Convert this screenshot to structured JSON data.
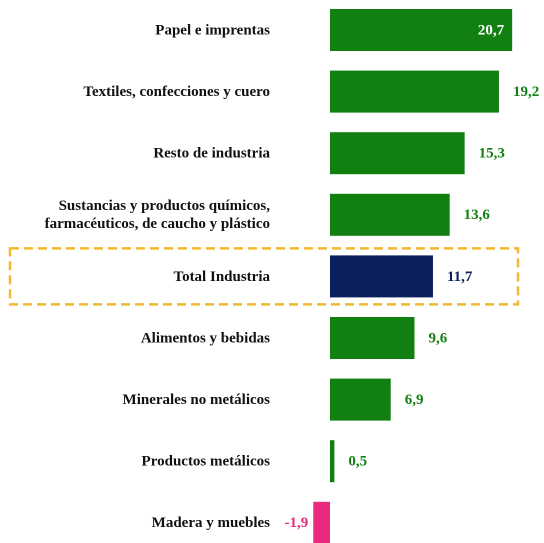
{
  "chart_data": {
    "type": "bar",
    "orientation": "horizontal",
    "categories": [
      "Papel e imprentas",
      "Textiles, confecciones y cuero",
      "Resto de industria",
      "Sustancias y productos químicos,\nfarmacéuticos, de caucho y plástico",
      "Total Industria",
      "Alimentos y bebidas",
      "Minerales no metálicos",
      "Productos metálicos",
      "Madera y muebles"
    ],
    "values": [
      20.7,
      19.2,
      15.3,
      13.6,
      11.7,
      9.6,
      6.9,
      0.5,
      -1.9
    ],
    "value_labels": [
      "20,7",
      "19,2",
      "15,3",
      "13,6",
      "11,7",
      "9,6",
      "6,9",
      "0,5",
      "-1,9"
    ],
    "colors": [
      "#118011",
      "#118011",
      "#118011",
      "#118011",
      "#0b1f5e",
      "#118011",
      "#118011",
      "#118011",
      "#ea2a7d"
    ],
    "highlight": "Total Industria",
    "highlight_color": "#f4b731"
  }
}
